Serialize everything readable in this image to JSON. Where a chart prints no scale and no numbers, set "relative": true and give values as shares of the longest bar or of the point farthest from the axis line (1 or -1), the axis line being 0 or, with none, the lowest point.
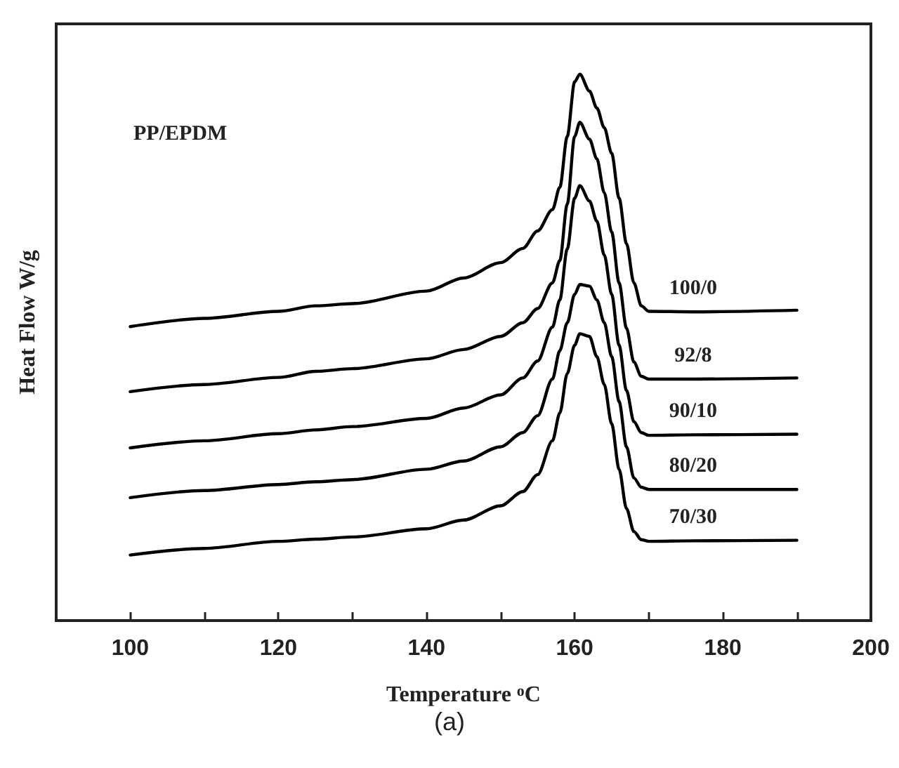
{
  "chart_data": {
    "type": "line",
    "relative": true,
    "xlabel": "Temperature $^{o}$C",
    "ylabel": "Heat Flow W/g",
    "annotations": [
      "PP/EPDM",
      "(a)"
    ],
    "xlim": [
      90,
      200
    ],
    "xticks": [
      100,
      120,
      140,
      160,
      180,
      200
    ],
    "marker": "none",
    "line_style": "solid",
    "x": [
      100,
      110,
      120,
      125,
      130,
      140,
      145,
      150,
      153,
      155,
      157,
      158,
      159,
      160,
      160.7,
      162,
      163,
      164,
      165,
      166,
      167,
      168,
      169,
      170,
      176,
      190
    ],
    "series": [
      {
        "name": "100/0",
        "color": "#000000",
        "values": [
          0.538,
          0.553,
          0.566,
          0.576,
          0.58,
          0.603,
          0.627,
          0.655,
          0.681,
          0.713,
          0.752,
          0.793,
          0.886,
          0.986,
          1,
          0.969,
          0.938,
          0.902,
          0.855,
          0.773,
          0.69,
          0.618,
          0.576,
          0.566,
          0.565,
          0.568
        ]
      },
      {
        "name": "92/8",
        "color": "#000000",
        "values": [
          0.419,
          0.432,
          0.445,
          0.456,
          0.461,
          0.479,
          0.496,
          0.52,
          0.545,
          0.571,
          0.618,
          0.659,
          0.762,
          0.886,
          0.912,
          0.881,
          0.845,
          0.783,
          0.711,
          0.618,
          0.535,
          0.473,
          0.447,
          0.442,
          0.442,
          0.444
        ]
      },
      {
        "name": "90/10",
        "color": "#000000",
        "values": [
          0.316,
          0.329,
          0.342,
          0.349,
          0.355,
          0.37,
          0.389,
          0.413,
          0.444,
          0.475,
          0.537,
          0.587,
          0.68,
          0.773,
          0.796,
          0.768,
          0.731,
          0.669,
          0.597,
          0.504,
          0.421,
          0.364,
          0.344,
          0.339,
          0.34,
          0.341
        ]
      },
      {
        "name": "80/20",
        "color": "#000000",
        "values": [
          0.225,
          0.238,
          0.249,
          0.254,
          0.258,
          0.277,
          0.292,
          0.318,
          0.344,
          0.375,
          0.442,
          0.494,
          0.545,
          0.597,
          0.615,
          0.612,
          0.587,
          0.545,
          0.483,
          0.401,
          0.318,
          0.261,
          0.244,
          0.24,
          0.24,
          0.24
        ]
      },
      {
        "name": "70/30",
        "color": "#000000",
        "values": [
          0.12,
          0.132,
          0.145,
          0.149,
          0.153,
          0.168,
          0.184,
          0.21,
          0.236,
          0.267,
          0.329,
          0.38,
          0.452,
          0.504,
          0.525,
          0.52,
          0.483,
          0.432,
          0.36,
          0.277,
          0.205,
          0.163,
          0.148,
          0.145,
          0.146,
          0.147
        ]
      }
    ]
  }
}
